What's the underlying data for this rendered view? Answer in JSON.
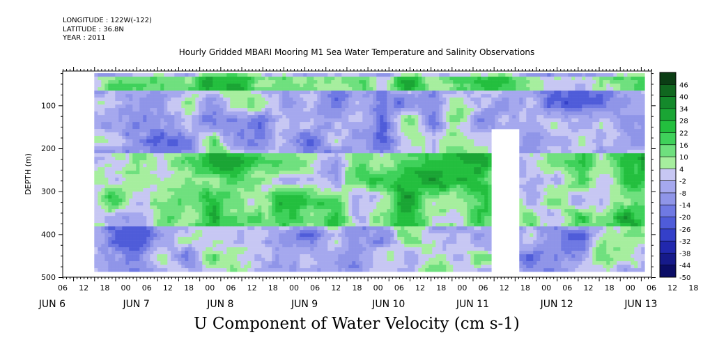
{
  "header": {
    "longitude": "LONGITUDE : 122W(-122)",
    "latitude": "LATITUDE : 36.8N",
    "year": "YEAR : 2011"
  },
  "title": "Hourly Gridded MBARI Mooring M1 Sea Water Temperature and Salinity Observations",
  "variable_title": "U Component of Water Velocity (cm s-1)",
  "chart_data": {
    "type": "heatmap",
    "title": "Hourly Gridded MBARI Mooring M1 Sea Water Temperature and Salinity Observations",
    "xlabel": "",
    "ylabel": "DEPTH (m)",
    "x_hour_ticks": [
      "06",
      "12",
      "18",
      "00",
      "06",
      "12",
      "18",
      "00",
      "06",
      "12",
      "18",
      "00",
      "06",
      "12",
      "18",
      "00",
      "06",
      "12",
      "18",
      "00",
      "06",
      "12",
      "18",
      "00",
      "06",
      "12",
      "18",
      "00",
      "06",
      "12",
      "18",
      "00"
    ],
    "x_day_labels": [
      {
        "label": "JUN  6",
        "day": 6
      },
      {
        "label": "JUN  7",
        "day": 7
      },
      {
        "label": "JUN  8",
        "day": 8
      },
      {
        "label": "JUN  9",
        "day": 9
      },
      {
        "label": "JUN 10",
        "day": 10
      },
      {
        "label": "JUN 11",
        "day": 11
      },
      {
        "label": "JUN 12",
        "day": 12
      },
      {
        "label": "JUN 13",
        "day": 13
      }
    ],
    "x_range": [
      "2011-06-06 03:00",
      "2011-06-13 03:00"
    ],
    "data_x_range": [
      "2011-06-06 12:00",
      "2011-06-13 01:00"
    ],
    "y_range": [
      500,
      20
    ],
    "y_ticks": [
      100,
      200,
      300,
      400,
      500
    ],
    "data_depth_range": [
      25,
      485
    ],
    "colorbar": {
      "levels": [
        46,
        40,
        34,
        28,
        22,
        16,
        10,
        4,
        -2,
        -8,
        -14,
        -20,
        -26,
        -32,
        -38,
        -44,
        -50
      ],
      "range": [
        -50,
        52
      ]
    },
    "bands": [
      {
        "depth_range": [
          25,
          60
        ],
        "value": 14
      },
      {
        "depth_range": [
          60,
          210
        ],
        "value": -6
      },
      {
        "depth_range": [
          210,
          380
        ],
        "value": 12
      },
      {
        "depth_range": [
          380,
          485
        ],
        "value": -5
      }
    ],
    "features": [
      {
        "description": "strong positive near surface",
        "time": "2011-06-11 06:00",
        "depth": 40,
        "value": 34
      },
      {
        "description": "missing data column",
        "time_range": [
          "2011-06-11 05:00",
          "2011-06-11 13:00"
        ],
        "depth_range": [
          150,
          485
        ]
      }
    ]
  },
  "colors": {
    "background": "#ffffff",
    "missing": "#ffffff"
  }
}
